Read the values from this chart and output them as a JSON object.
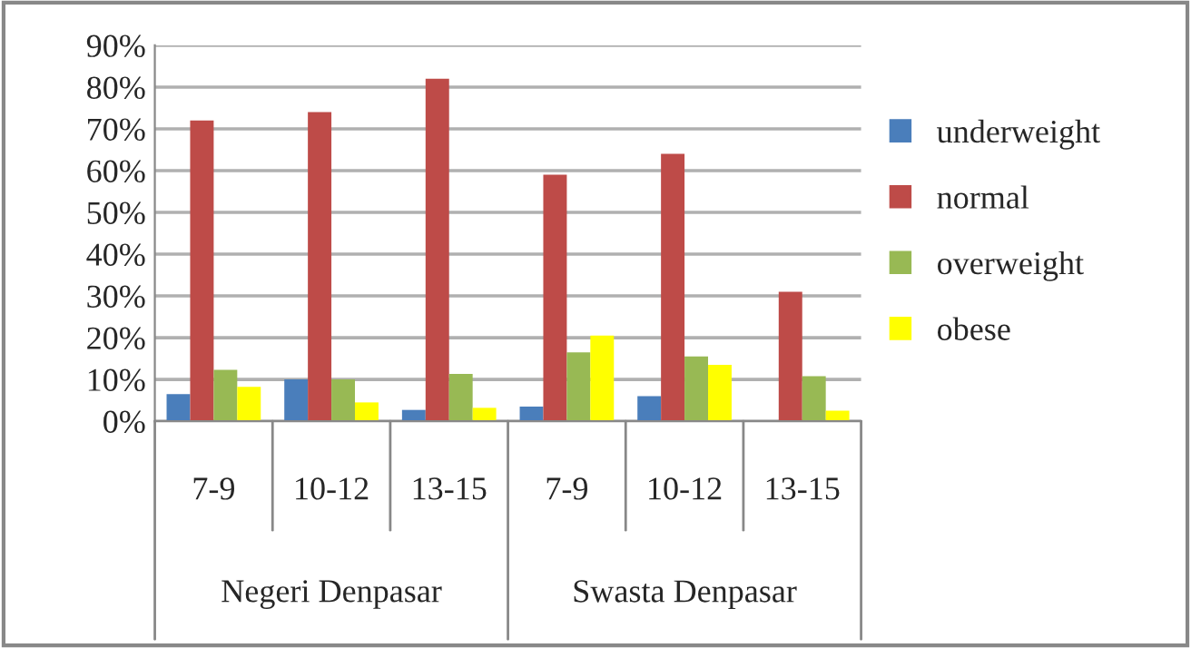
{
  "chart_data": {
    "type": "bar",
    "categories": [
      "7-9",
      "10-12",
      "13-15",
      "7-9",
      "10-12",
      "13-15"
    ],
    "series": [
      {
        "name": "underweight",
        "color": "#4a7ebb",
        "values": [
          6.5,
          10,
          2.7,
          3.5,
          6,
          0
        ]
      },
      {
        "name": "normal",
        "color": "#be4b48",
        "values": [
          72,
          74,
          82,
          59,
          64,
          31
        ]
      },
      {
        "name": "overweight",
        "color": "#98b954",
        "values": [
          12.3,
          10,
          11.3,
          16.5,
          15.5,
          10.8
        ]
      },
      {
        "name": "obese",
        "color": "#ffff00",
        "values": [
          8.2,
          4.5,
          3.2,
          20.5,
          13.5,
          2.5
        ]
      }
    ],
    "annotations": [
      "Negeri Denpasar",
      "Swasta Denpasar"
    ],
    "ylim": [
      0,
      90
    ],
    "yticks": [
      {
        "value": 0,
        "label": "0%"
      },
      {
        "value": 10,
        "label": "10%"
      },
      {
        "value": 20,
        "label": "20%"
      },
      {
        "value": 30,
        "label": "30%"
      },
      {
        "value": 40,
        "label": "40%"
      },
      {
        "value": 50,
        "label": "50%"
      },
      {
        "value": 60,
        "label": "60%"
      },
      {
        "value": 70,
        "label": "70%"
      },
      {
        "value": 80,
        "label": "80%"
      },
      {
        "value": 90,
        "label": "90%"
      }
    ],
    "grid": "y",
    "legend": "right"
  }
}
